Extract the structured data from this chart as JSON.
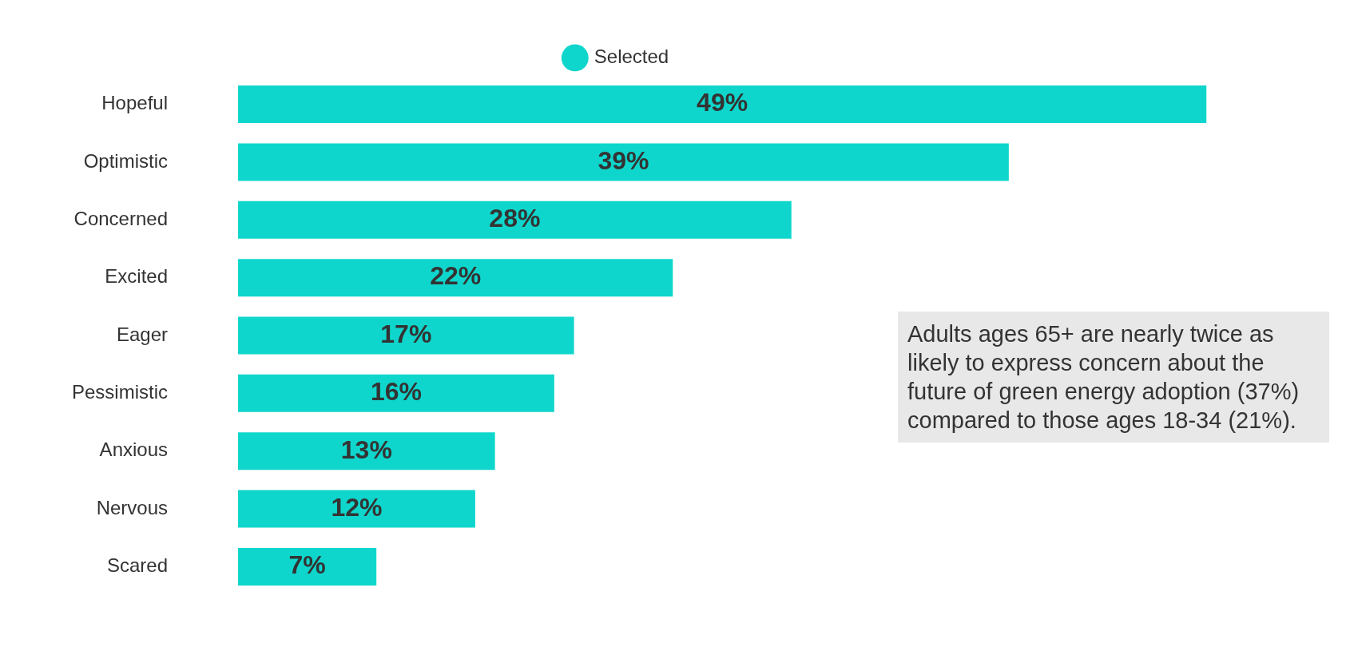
{
  "chart_data": {
    "type": "bar",
    "orientation": "horizontal",
    "categories": [
      "Hopeful",
      "Optimistic",
      "Concerned",
      "Excited",
      "Eager",
      "Pessimistic",
      "Anxious",
      "Nervous",
      "Scared"
    ],
    "series": [
      {
        "name": "Selected",
        "color": "#0fd6cc",
        "values": [
          49,
          39,
          28,
          22,
          17,
          16,
          13,
          12,
          7
        ],
        "value_labels": [
          "49%",
          "39%",
          "28%",
          "22%",
          "17%",
          "16%",
          "13%",
          "12%",
          "7%"
        ]
      }
    ],
    "legend": "top",
    "tick_labels": "y",
    "annotations": [
      "Adults ages 65+ are nearly twice as likely to express concern about the future of green energy adoption (37%) compared to those ages 18-34 (21%)."
    ]
  }
}
